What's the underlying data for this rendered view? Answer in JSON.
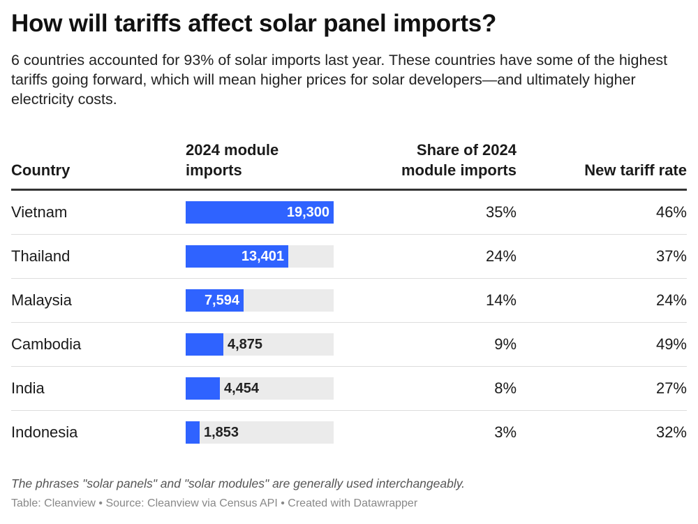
{
  "header": {
    "title": "How will tariffs affect solar panel imports?",
    "subtitle": "6 countries accounted for 93% of solar imports last year. These countries have some of the highest tariffs going forward, which will mean higher prices for solar developers—and ultimately higher electricity costs."
  },
  "chart_data": {
    "type": "table",
    "title": "How will tariffs affect solar panel imports?",
    "columns": [
      "Country",
      "2024 module imports",
      "Share of 2024 module imports",
      "New tariff rate"
    ],
    "imports_max": 19300,
    "bar_color": "#2f63ff",
    "track_color": "#ebebeb",
    "rows": [
      {
        "country": "Vietnam",
        "imports": 19300,
        "imports_label": "19,300",
        "share": "35%",
        "tariff": "46%"
      },
      {
        "country": "Thailand",
        "imports": 13401,
        "imports_label": "13,401",
        "share": "24%",
        "tariff": "37%"
      },
      {
        "country": "Malaysia",
        "imports": 7594,
        "imports_label": "7,594",
        "share": "14%",
        "tariff": "24%"
      },
      {
        "country": "Cambodia",
        "imports": 4875,
        "imports_label": "4,875",
        "share": "9%",
        "tariff": "49%"
      },
      {
        "country": "India",
        "imports": 4454,
        "imports_label": "4,454",
        "share": "8%",
        "tariff": "27%"
      },
      {
        "country": "Indonesia",
        "imports": 1853,
        "imports_label": "1,853",
        "share": "3%",
        "tariff": "32%"
      }
    ]
  },
  "footer": {
    "note": "The phrases \"solar panels\" and \"solar modules\" are generally used interchangeably.",
    "source": "Table: Cleanview • Source: Cleanview via Census API • Created with Datawrapper"
  }
}
